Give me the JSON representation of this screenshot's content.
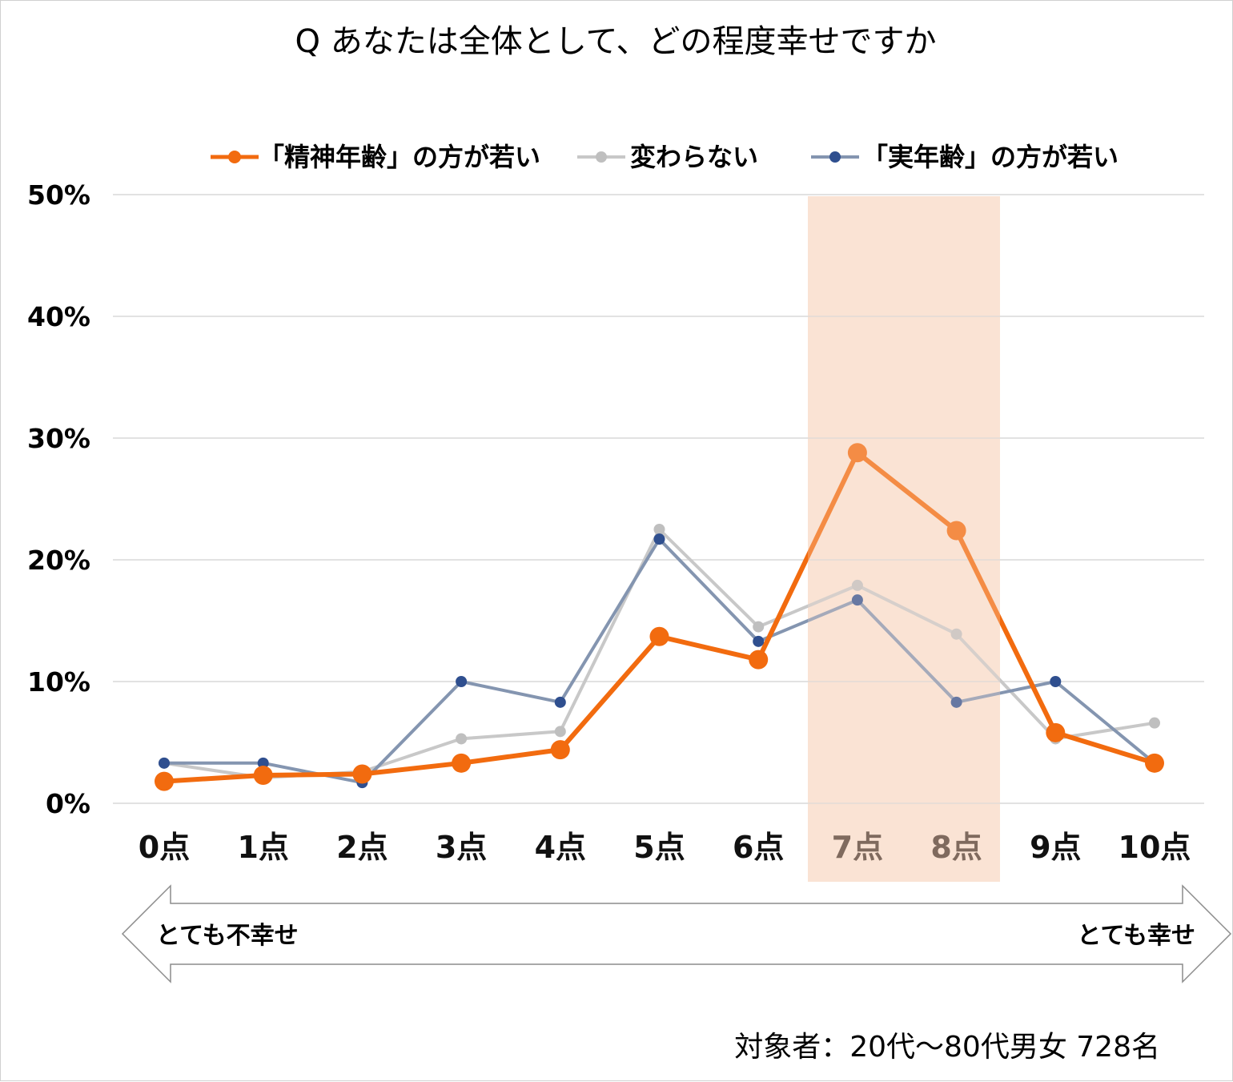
{
  "chart_data": {
    "type": "line",
    "title": "Q あなたは全体として、どの程度幸せですか",
    "categories": [
      "0点",
      "1点",
      "2点",
      "3点",
      "4点",
      "5点",
      "6点",
      "7点",
      "8点",
      "9点",
      "10点"
    ],
    "ylim": [
      0,
      50
    ],
    "yticks": [
      "0%",
      "10%",
      "20%",
      "30%",
      "40%",
      "50%"
    ],
    "ytick_values": [
      0,
      10,
      20,
      30,
      40,
      50
    ],
    "grid": true,
    "legend_position": "top",
    "highlight_categories": [
      "7点",
      "8点"
    ],
    "series": [
      {
        "name": "「精神年齢」の方が若い",
        "color": "#f26b0f",
        "values": [
          1.8,
          2.3,
          2.4,
          3.3,
          4.4,
          13.7,
          11.8,
          28.8,
          22.4,
          5.8,
          3.3
        ]
      },
      {
        "name": "変わらない",
        "color": "#bfbfbf",
        "values": [
          3.3,
          2.1,
          2.6,
          5.3,
          5.9,
          22.5,
          14.5,
          17.9,
          13.9,
          5.3,
          6.6
        ]
      },
      {
        "name": "「実年齢」の方が若い",
        "color": "#2f4f8f",
        "values": [
          3.3,
          3.3,
          1.7,
          10.0,
          8.3,
          21.7,
          13.3,
          16.7,
          8.3,
          10.0,
          3.3
        ]
      }
    ],
    "annotations": {
      "left": "とても不幸せ",
      "right": "とても幸せ"
    },
    "note": "対象者：20代～80代男女 728名"
  },
  "colors": {
    "highlight_band": "#fae3d4",
    "highlight_tick": "#7f6a5e",
    "grid": "#d9d9d9",
    "series_line_2": "#c8c8c8",
    "series_line_3": "#8495b0"
  }
}
